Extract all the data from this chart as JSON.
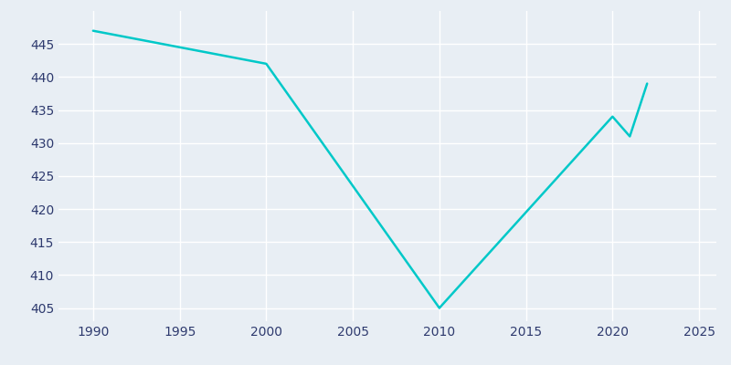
{
  "years": [
    1990,
    2000,
    2010,
    2020,
    2021,
    2022
  ],
  "population": [
    447,
    442,
    405,
    434,
    431,
    439
  ],
  "line_color": "#00C8C8",
  "background_color": "#E8EEF4",
  "grid_color": "#FFFFFF",
  "text_color": "#2E3A6E",
  "xlim": [
    1988,
    2026
  ],
  "ylim": [
    403,
    450
  ],
  "xticks": [
    1990,
    1995,
    2000,
    2005,
    2010,
    2015,
    2020,
    2025
  ],
  "yticks": [
    405,
    410,
    415,
    420,
    425,
    430,
    435,
    440,
    445
  ]
}
